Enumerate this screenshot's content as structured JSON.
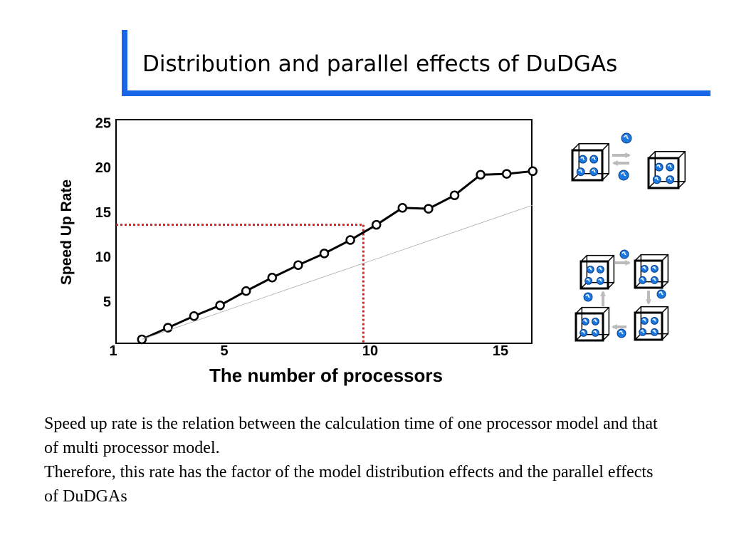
{
  "slide": {
    "title": "Distribution and parallel effects of DuDGAs",
    "accent_color": "#1a66e8"
  },
  "body": {
    "line1": "Speed up rate is the relation between the calculation time of one processor model and that of multi processor model.",
    "line2": "Therefore, this rate has the factor of the model distribution effects and the parallel effects of DuDGAs"
  },
  "chart_data": {
    "type": "line",
    "title": "",
    "xlabel": "The number of processors",
    "ylabel": "Speed Up Rate",
    "xlim": [
      1,
      16
    ],
    "ylim": [
      0,
      25
    ],
    "xticks": [
      1,
      5,
      10,
      15
    ],
    "yticks": [
      5,
      10,
      15,
      20,
      25
    ],
    "grid": false,
    "series": [
      {
        "color": "#000000",
        "marker": "circle-open",
        "x": [
          1.5,
          2.5,
          3.5,
          4.5,
          5.5,
          6.5,
          7.5,
          8.5,
          9.5,
          10.5,
          11.5,
          12.5,
          13.5,
          14.5,
          15.5,
          16.5
        ],
        "y": [
          1.0,
          2.3,
          3.6,
          4.8,
          6.4,
          7.9,
          9.3,
          10.6,
          12.1,
          13.8,
          15.7,
          15.6,
          17.1,
          19.4,
          19.5,
          19.8
        ]
      },
      {
        "color": "#aaaaaa",
        "marker": "none",
        "x": [
          1.5,
          16.5
        ],
        "y": [
          1.0,
          16.0
        ]
      }
    ],
    "reference_lines": {
      "color": "#e02020",
      "x": 10,
      "y": 13.8
    }
  },
  "diagrams": {
    "cube_fill": "#ffffff",
    "ball_color": "#1a78e0",
    "arrow_color": "#bbbbbb"
  }
}
